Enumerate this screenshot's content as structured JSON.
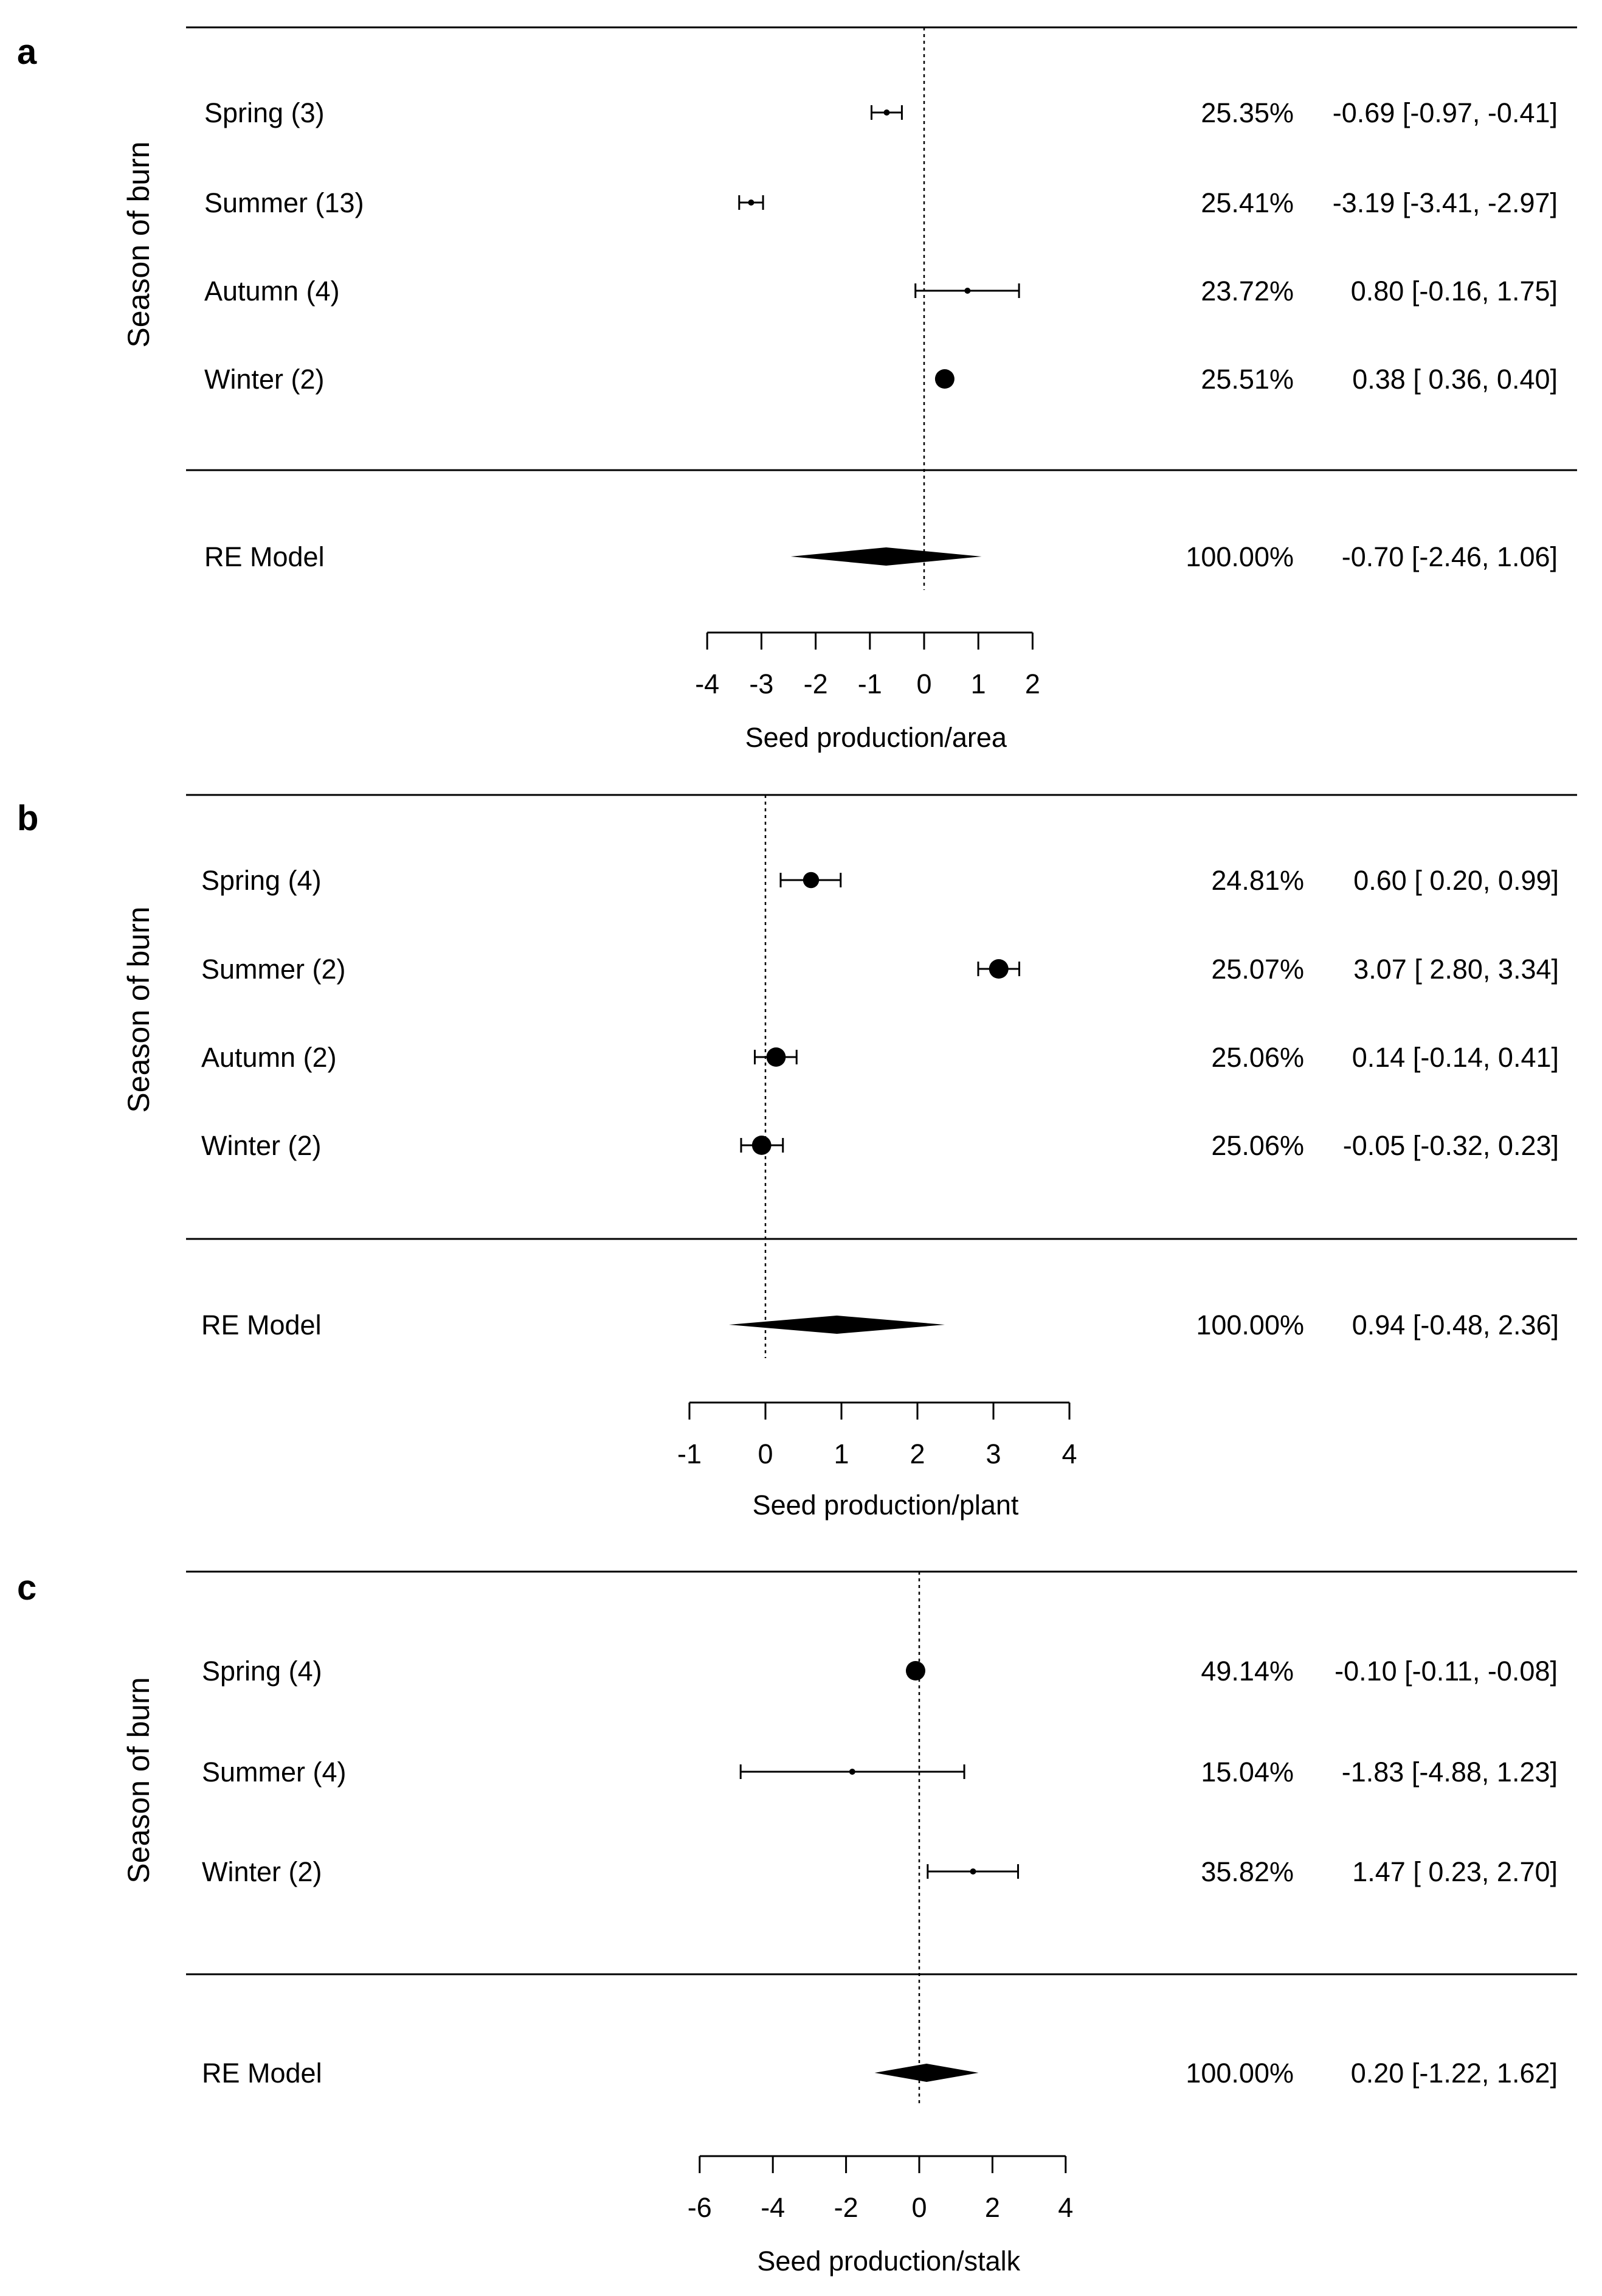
{
  "chart_data": [
    {
      "type": "forest",
      "panel": "a",
      "ylabel": "Season of burn",
      "xlabel": "Seed production/area",
      "xticks": [
        -4,
        -3,
        -2,
        -1,
        0,
        1,
        2
      ],
      "xlim": [
        -4,
        2
      ],
      "reference_line": 0,
      "studies": [
        {
          "label": "Spring (3)",
          "estimate": -0.69,
          "lower": -0.97,
          "upper": -0.41,
          "weight_pct": 25.35,
          "weight_text": "25.35%",
          "ci_text": "-0.69 [-0.97, -0.41]"
        },
        {
          "label": "Summer (13)",
          "estimate": -3.19,
          "lower": -3.41,
          "upper": -2.97,
          "weight_pct": 25.41,
          "weight_text": "25.41%",
          "ci_text": "-3.19 [-3.41, -2.97]"
        },
        {
          "label": "Autumn (4)",
          "estimate": 0.8,
          "lower": -0.16,
          "upper": 1.75,
          "weight_pct": 23.72,
          "weight_text": "23.72%",
          "ci_text": "0.80 [-0.16,  1.75]"
        },
        {
          "label": "Winter (2)",
          "estimate": 0.38,
          "lower": 0.36,
          "upper": 0.4,
          "weight_pct": 25.51,
          "weight_text": "25.51%",
          "ci_text": "0.38 [ 0.36,  0.40]"
        }
      ],
      "summary": {
        "label": "RE Model",
        "estimate": -0.7,
        "lower": -2.46,
        "upper": 1.06,
        "weight_text": "100.00%",
        "ci_text": "-0.70 [-2.46,  1.06]"
      }
    },
    {
      "type": "forest",
      "panel": "b",
      "ylabel": "Season of burn",
      "xlabel": "Seed production/plant",
      "xticks": [
        -1,
        0,
        1,
        2,
        3,
        4
      ],
      "xlim": [
        -1,
        4
      ],
      "reference_line": 0,
      "studies": [
        {
          "label": "Spring (4)",
          "estimate": 0.6,
          "lower": 0.2,
          "upper": 0.99,
          "weight_pct": 24.81,
          "weight_text": "24.81%",
          "ci_text": "0.60 [ 0.20, 0.99]"
        },
        {
          "label": "Summer (2)",
          "estimate": 3.07,
          "lower": 2.8,
          "upper": 3.34,
          "weight_pct": 25.07,
          "weight_text": "25.07%",
          "ci_text": "3.07 [ 2.80, 3.34]"
        },
        {
          "label": "Autumn (2)",
          "estimate": 0.14,
          "lower": -0.14,
          "upper": 0.41,
          "weight_pct": 25.06,
          "weight_text": "25.06%",
          "ci_text": "0.14 [-0.14, 0.41]"
        },
        {
          "label": "Winter (2)",
          "estimate": -0.05,
          "lower": -0.32,
          "upper": 0.23,
          "weight_pct": 25.06,
          "weight_text": "25.06%",
          "ci_text": "-0.05 [-0.32, 0.23]"
        }
      ],
      "summary": {
        "label": "RE Model",
        "estimate": 0.94,
        "lower": -0.48,
        "upper": 2.36,
        "weight_text": "100.00%",
        "ci_text": "0.94 [-0.48, 2.36]"
      }
    },
    {
      "type": "forest",
      "panel": "c",
      "ylabel": "Season of burn",
      "xlabel": "Seed production/stalk",
      "xticks": [
        -6,
        -4,
        -2,
        0,
        2,
        4
      ],
      "xlim": [
        -6,
        4
      ],
      "reference_line": 0,
      "studies": [
        {
          "label": "Spring (4)",
          "estimate": -0.1,
          "lower": -0.11,
          "upper": -0.08,
          "weight_pct": 49.14,
          "weight_text": "49.14%",
          "ci_text": "-0.10 [-0.11, -0.08]"
        },
        {
          "label": "Summer (4)",
          "estimate": -1.83,
          "lower": -4.88,
          "upper": 1.23,
          "weight_pct": 15.04,
          "weight_text": "15.04%",
          "ci_text": "-1.83 [-4.88,  1.23]"
        },
        {
          "label": "Winter (2)",
          "estimate": 1.47,
          "lower": 0.23,
          "upper": 2.7,
          "weight_pct": 35.82,
          "weight_text": "35.82%",
          "ci_text": "1.47 [ 0.23,  2.70]"
        }
      ],
      "summary": {
        "label": "RE Model",
        "estimate": 0.2,
        "lower": -1.22,
        "upper": 1.62,
        "weight_text": "100.00%",
        "ci_text": "0.20 [-1.22,  1.62]"
      }
    }
  ]
}
